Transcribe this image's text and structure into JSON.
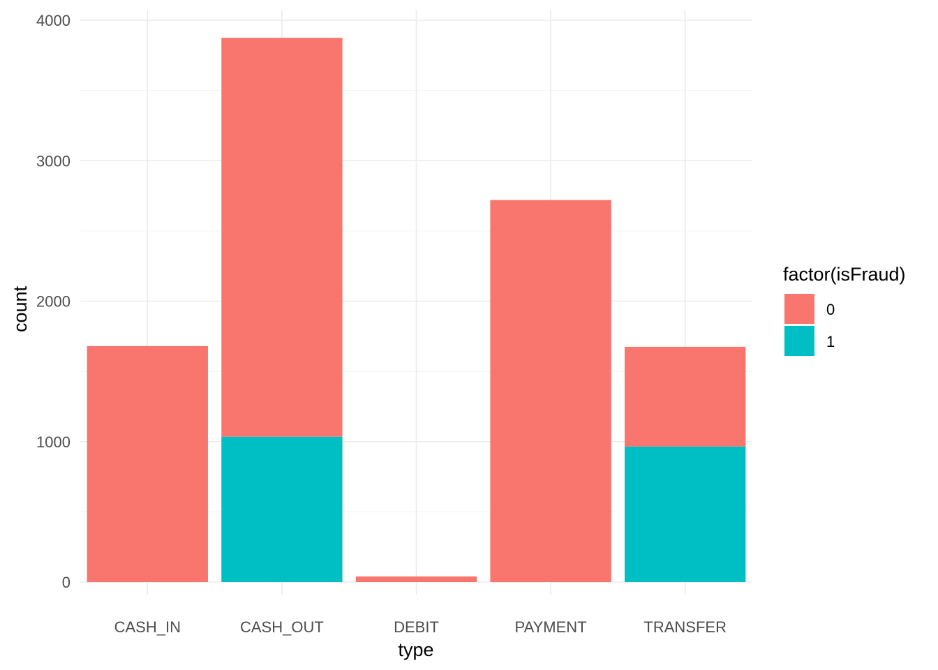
{
  "chart_data": {
    "type": "bar",
    "stacked": true,
    "title": "",
    "xlabel": "type",
    "ylabel": "count",
    "categories": [
      "CASH_IN",
      "CASH_OUT",
      "DEBIT",
      "PAYMENT",
      "TRANSFER"
    ],
    "series": [
      {
        "name": "0",
        "values": [
          1680,
          2840,
          40,
          2720,
          710
        ],
        "color": "#F8766D"
      },
      {
        "name": "1",
        "values": [
          0,
          1035,
          0,
          0,
          965
        ],
        "color": "#00BFC4"
      }
    ],
    "ylim": [
      0,
      4000
    ],
    "yticks": [
      "0",
      "1000",
      "2000",
      "3000",
      "4000"
    ],
    "grid": true,
    "legend": {
      "title": "factor(isFraud)",
      "placement": "right"
    }
  }
}
